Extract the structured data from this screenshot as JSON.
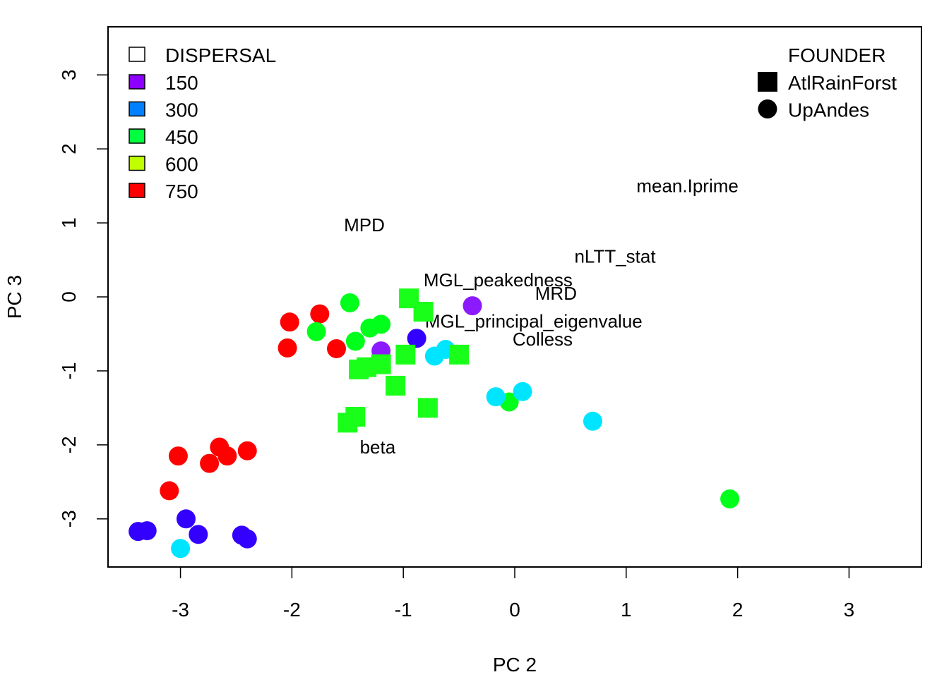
{
  "chart_data": {
    "type": "scatter",
    "xlabel": "PC 2",
    "ylabel": "PC 3",
    "xlim": [
      -3.65,
      3.65
    ],
    "ylim": [
      -3.65,
      3.65
    ],
    "x_ticks": [
      -3,
      -2,
      -1,
      0,
      1,
      2,
      3
    ],
    "y_ticks": [
      -3,
      -2,
      -1,
      0,
      1,
      2,
      3
    ],
    "x_tick_labels": [
      "-3",
      "-2",
      "-1",
      "0",
      "1",
      "2",
      "3"
    ],
    "y_tick_labels": [
      "-3",
      "-2",
      "-1",
      "0",
      "1",
      "2",
      "3"
    ],
    "grid": false,
    "legends": {
      "dispersal": {
        "title": "DISPERSAL",
        "placement": "top-left",
        "entries": [
          {
            "label": "150",
            "color": "#8c00ff"
          },
          {
            "label": "300",
            "color": "#0080ff"
          },
          {
            "label": "450",
            "color": "#00ff40"
          },
          {
            "label": "600",
            "color": "#bfff00"
          },
          {
            "label": "750",
            "color": "#ff0000"
          }
        ]
      },
      "founder": {
        "title": "FOUNDER",
        "placement": "top-right",
        "entries": [
          {
            "label": "AtlRainForst",
            "shape": "square"
          },
          {
            "label": "UpAndes",
            "shape": "circle"
          }
        ]
      }
    },
    "variable_labels": [
      {
        "text": "mean.Iprime",
        "x": 1.55,
        "y": 1.5
      },
      {
        "text": "MPD",
        "x": -1.35,
        "y": 0.97
      },
      {
        "text": "nLTT_stat",
        "x": 0.9,
        "y": 0.55
      },
      {
        "text": "MGL_peakedness",
        "x": -0.15,
        "y": 0.23
      },
      {
        "text": "MRD",
        "x": 0.37,
        "y": 0.05
      },
      {
        "text": "MGL_principal_eigenvalue",
        "x": 0.17,
        "y": -0.33
      },
      {
        "text": "Colless",
        "x": 0.25,
        "y": -0.57
      },
      {
        "text": "beta",
        "x": -1.23,
        "y": -2.03
      }
    ],
    "series": [
      {
        "shape": "circle",
        "color": "#ff0000",
        "points": [
          [
            -2.02,
            -0.34
          ],
          [
            -1.75,
            -0.23
          ],
          [
            -2.04,
            -0.69
          ],
          [
            -1.6,
            -0.7
          ],
          [
            -3.02,
            -2.15
          ],
          [
            -2.65,
            -2.03
          ],
          [
            -2.74,
            -2.25
          ],
          [
            -2.58,
            -2.15
          ],
          [
            -2.4,
            -2.08
          ],
          [
            -3.1,
            -2.62
          ]
        ]
      },
      {
        "shape": "circle",
        "color": "#3300ff",
        "points": [
          [
            -3.38,
            -3.17
          ],
          [
            -3.3,
            -3.16
          ],
          [
            -2.95,
            -3.0
          ],
          [
            -2.84,
            -3.21
          ],
          [
            -2.45,
            -3.22
          ],
          [
            -2.4,
            -3.27
          ],
          [
            -0.88,
            -0.56
          ]
        ]
      },
      {
        "shape": "circle",
        "color": "#8c1aff",
        "points": [
          [
            -1.2,
            -0.73
          ],
          [
            -0.38,
            -0.12
          ]
        ]
      },
      {
        "shape": "circle",
        "color": "#00ff1a",
        "points": [
          [
            -1.48,
            -0.08
          ],
          [
            -1.78,
            -0.47
          ],
          [
            -1.43,
            -0.6
          ],
          [
            -1.3,
            -0.42
          ],
          [
            -1.2,
            -0.37
          ],
          [
            -0.05,
            -1.42
          ],
          [
            1.93,
            -2.73
          ]
        ]
      },
      {
        "shape": "circle",
        "color": "#00e5ff",
        "points": [
          [
            -0.72,
            -0.8
          ],
          [
            -0.62,
            -0.71
          ],
          [
            -0.17,
            -1.35
          ],
          [
            0.07,
            -1.28
          ],
          [
            0.7,
            -1.68
          ],
          [
            -3.0,
            -3.4
          ]
        ]
      },
      {
        "shape": "square",
        "color": "#1aff1a",
        "points": [
          [
            -0.95,
            -0.02
          ],
          [
            -0.98,
            -0.78
          ],
          [
            -1.4,
            -0.98
          ],
          [
            -1.33,
            -0.95
          ],
          [
            -1.2,
            -0.91
          ],
          [
            -1.07,
            -1.2
          ],
          [
            -0.78,
            -1.5
          ],
          [
            -0.5,
            -0.78
          ],
          [
            -1.5,
            -1.7
          ],
          [
            -1.43,
            -1.62
          ],
          [
            -0.82,
            -0.2
          ]
        ]
      }
    ]
  }
}
